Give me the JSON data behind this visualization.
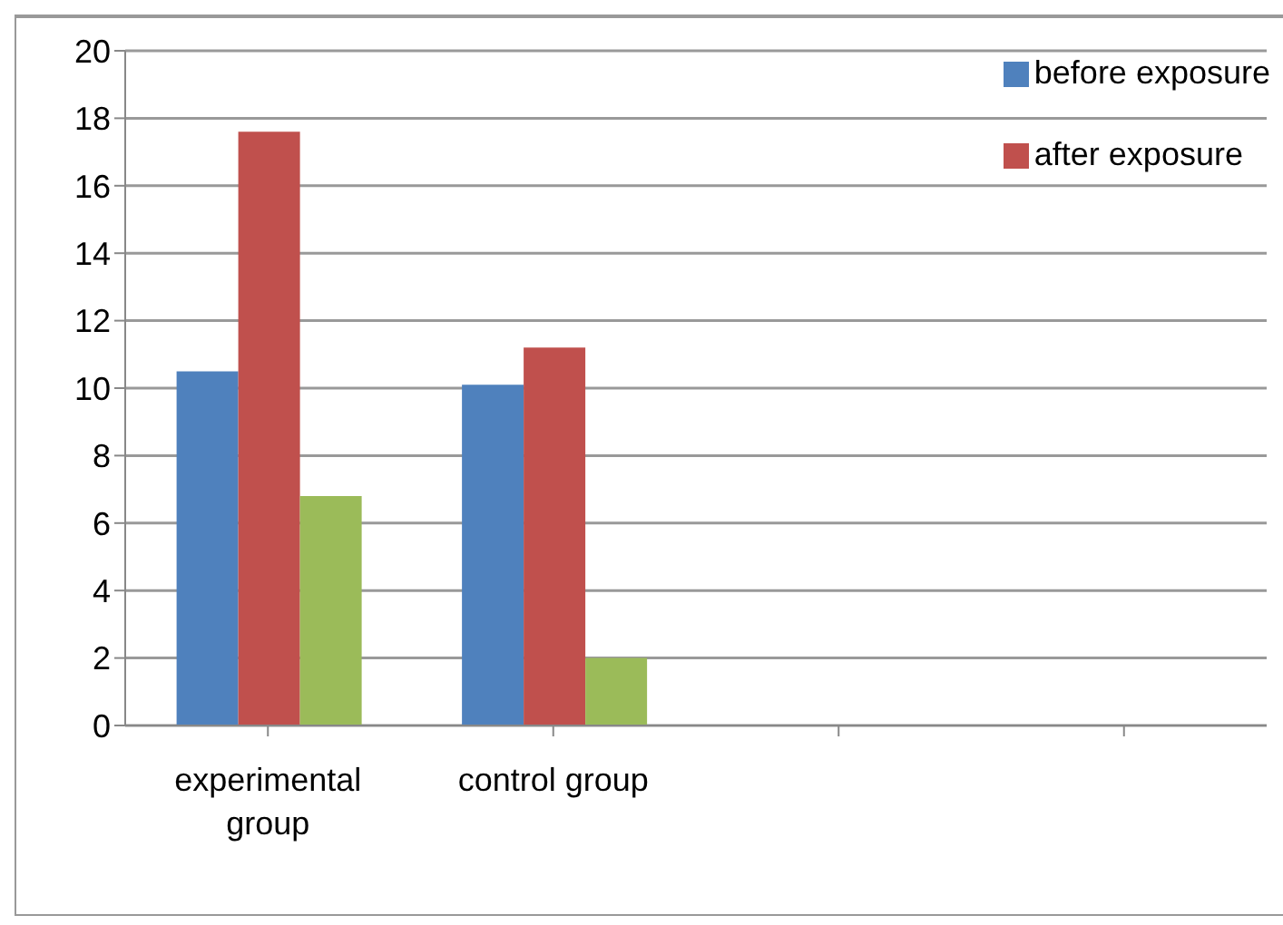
{
  "chart_data": {
    "type": "bar",
    "categories": [
      "experimental group",
      "control group",
      null,
      null
    ],
    "series": [
      {
        "name": "before exposure",
        "color": "#4f81bd",
        "values": [
          10.5,
          10.1,
          null,
          null
        ]
      },
      {
        "name": "after exposure",
        "color": "#c0504d",
        "values": [
          17.6,
          11.2,
          null,
          null
        ]
      },
      {
        "color": "#9bbb59",
        "values": [
          6.8,
          2.0,
          null,
          null
        ]
      }
    ],
    "ylim": [
      0,
      20
    ],
    "yticks": [
      0,
      2,
      4,
      6,
      8,
      10,
      12,
      14,
      16,
      18,
      20
    ],
    "grid": "y",
    "legend": "top right"
  }
}
